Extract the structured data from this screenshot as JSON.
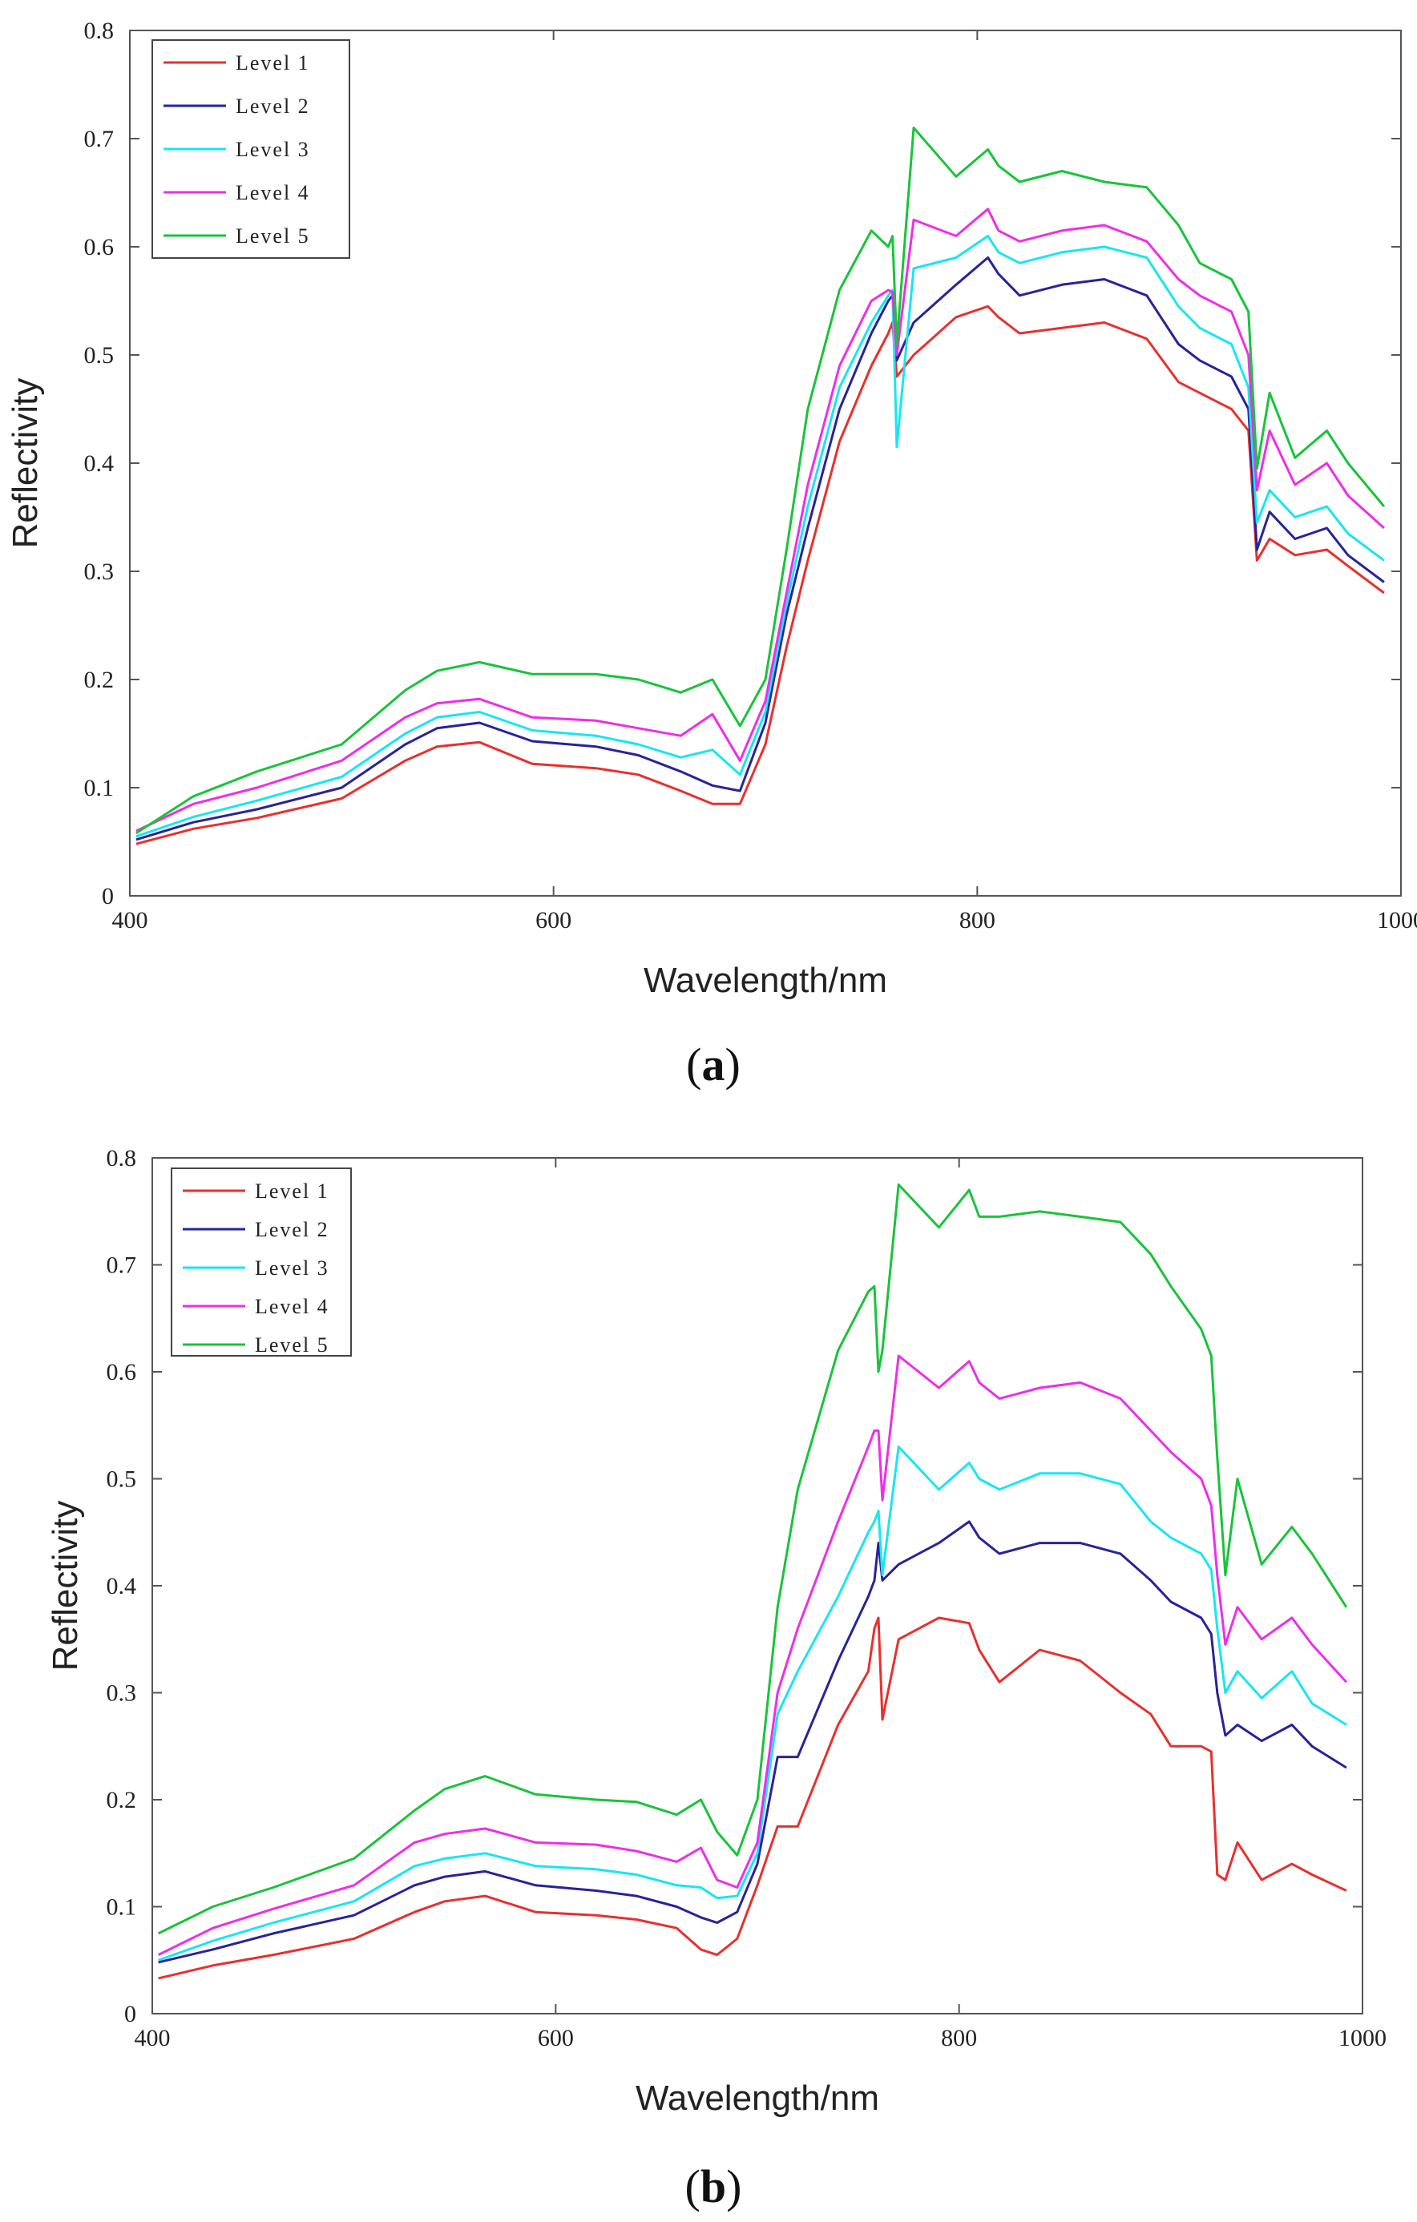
{
  "colors": {
    "Level 1": "#e8302e",
    "Level 2": "#27239b",
    "Level 3": "#18e6f0",
    "Level 4": "#ee2ee8",
    "Level 5": "#18c43a"
  },
  "chart_data": [
    {
      "id": "a",
      "caption_open": "(",
      "caption_letter": "a",
      "caption_close": ")",
      "type": "line",
      "xlabel": "Wavelength/nm",
      "ylabel": "Reflectivity",
      "xlim": [
        400,
        1000
      ],
      "ylim": [
        0,
        0.8
      ],
      "xticks": [
        "400",
        "600",
        "800",
        "1000"
      ],
      "yticks": [
        "0",
        "0.1",
        "0.2",
        "0.3",
        "0.4",
        "0.5",
        "0.6",
        "0.7",
        "0.8"
      ],
      "legend_position": "top-left",
      "series": [
        {
          "name": "Level 1",
          "x": [
            403,
            430,
            460,
            500,
            530,
            545,
            565,
            590,
            620,
            640,
            660,
            675,
            688,
            700,
            710,
            720,
            735,
            750,
            758,
            760,
            762,
            770,
            790,
            805,
            810,
            820,
            840,
            860,
            880,
            895,
            905,
            920,
            928,
            932,
            938,
            950,
            965,
            975,
            992
          ],
          "y": [
            0.048,
            0.062,
            0.072,
            0.09,
            0.125,
            0.138,
            0.142,
            0.122,
            0.118,
            0.112,
            0.097,
            0.085,
            0.085,
            0.14,
            0.23,
            0.31,
            0.42,
            0.49,
            0.52,
            0.53,
            0.48,
            0.5,
            0.535,
            0.545,
            0.535,
            0.52,
            0.525,
            0.53,
            0.515,
            0.475,
            0.465,
            0.45,
            0.43,
            0.31,
            0.33,
            0.315,
            0.32,
            0.305,
            0.28
          ]
        },
        {
          "name": "Level 2",
          "x": [
            403,
            430,
            460,
            500,
            530,
            545,
            565,
            590,
            620,
            640,
            660,
            675,
            688,
            700,
            710,
            720,
            735,
            750,
            758,
            760,
            762,
            770,
            790,
            805,
            810,
            820,
            840,
            860,
            880,
            895,
            905,
            920,
            928,
            932,
            938,
            950,
            965,
            975,
            992
          ],
          "y": [
            0.052,
            0.068,
            0.08,
            0.1,
            0.14,
            0.155,
            0.16,
            0.143,
            0.138,
            0.13,
            0.115,
            0.102,
            0.097,
            0.16,
            0.26,
            0.34,
            0.45,
            0.52,
            0.55,
            0.555,
            0.495,
            0.53,
            0.565,
            0.59,
            0.575,
            0.555,
            0.565,
            0.57,
            0.555,
            0.51,
            0.495,
            0.48,
            0.45,
            0.32,
            0.355,
            0.33,
            0.34,
            0.315,
            0.29
          ]
        },
        {
          "name": "Level 3",
          "x": [
            403,
            430,
            460,
            500,
            530,
            545,
            565,
            590,
            620,
            640,
            660,
            675,
            688,
            700,
            710,
            720,
            735,
            750,
            758,
            760,
            762,
            770,
            790,
            805,
            810,
            820,
            840,
            860,
            880,
            895,
            905,
            920,
            928,
            932,
            938,
            950,
            965,
            975,
            992
          ],
          "y": [
            0.055,
            0.073,
            0.088,
            0.11,
            0.15,
            0.165,
            0.17,
            0.153,
            0.148,
            0.14,
            0.128,
            0.135,
            0.112,
            0.17,
            0.27,
            0.36,
            0.47,
            0.53,
            0.555,
            0.56,
            0.415,
            0.58,
            0.59,
            0.61,
            0.595,
            0.585,
            0.595,
            0.6,
            0.59,
            0.545,
            0.525,
            0.51,
            0.47,
            0.345,
            0.375,
            0.35,
            0.36,
            0.335,
            0.31
          ]
        },
        {
          "name": "Level 4",
          "x": [
            403,
            430,
            460,
            500,
            530,
            545,
            565,
            590,
            620,
            640,
            660,
            675,
            688,
            700,
            710,
            720,
            735,
            750,
            758,
            760,
            762,
            770,
            790,
            805,
            810,
            820,
            840,
            860,
            880,
            895,
            905,
            920,
            928,
            932,
            938,
            950,
            965,
            975,
            992
          ],
          "y": [
            0.06,
            0.085,
            0.1,
            0.125,
            0.165,
            0.178,
            0.182,
            0.165,
            0.162,
            0.155,
            0.148,
            0.168,
            0.125,
            0.18,
            0.28,
            0.38,
            0.49,
            0.55,
            0.56,
            0.558,
            0.5,
            0.625,
            0.61,
            0.635,
            0.615,
            0.605,
            0.615,
            0.62,
            0.605,
            0.57,
            0.555,
            0.54,
            0.5,
            0.375,
            0.43,
            0.38,
            0.4,
            0.37,
            0.34
          ]
        },
        {
          "name": "Level 5",
          "x": [
            403,
            430,
            460,
            500,
            530,
            545,
            565,
            590,
            620,
            640,
            660,
            675,
            688,
            700,
            710,
            720,
            735,
            750,
            758,
            760,
            762,
            770,
            790,
            805,
            810,
            820,
            840,
            860,
            880,
            895,
            905,
            920,
            928,
            932,
            938,
            950,
            965,
            975,
            992
          ],
          "y": [
            0.058,
            0.092,
            0.115,
            0.14,
            0.19,
            0.208,
            0.216,
            0.205,
            0.205,
            0.2,
            0.188,
            0.2,
            0.157,
            0.2,
            0.32,
            0.45,
            0.56,
            0.615,
            0.6,
            0.61,
            0.51,
            0.71,
            0.665,
            0.69,
            0.675,
            0.66,
            0.67,
            0.66,
            0.655,
            0.62,
            0.585,
            0.57,
            0.54,
            0.395,
            0.465,
            0.405,
            0.43,
            0.4,
            0.36
          ]
        }
      ]
    },
    {
      "id": "b",
      "caption_open": "(",
      "caption_letter": "b",
      "caption_close": ")",
      "type": "line",
      "xlabel": "Wavelength/nm",
      "ylabel": "Reflectivity",
      "xlim": [
        400,
        1000
      ],
      "ylim": [
        0,
        0.8
      ],
      "xticks": [
        "400",
        "600",
        "800",
        "1000"
      ],
      "yticks": [
        "0",
        "0.1",
        "0.2",
        "0.3",
        "0.4",
        "0.5",
        "0.6",
        "0.7",
        "0.8"
      ],
      "legend_position": "top-left",
      "series": [
        {
          "name": "Level 1",
          "x": [
            403,
            430,
            460,
            500,
            530,
            545,
            565,
            590,
            620,
            640,
            660,
            672,
            680,
            690,
            700,
            710,
            720,
            740,
            755,
            758,
            760,
            762,
            770,
            790,
            805,
            810,
            820,
            840,
            860,
            880,
            895,
            905,
            920,
            925,
            928,
            932,
            938,
            950,
            965,
            975,
            992
          ],
          "y": [
            0.033,
            0.045,
            0.055,
            0.07,
            0.095,
            0.105,
            0.11,
            0.095,
            0.092,
            0.088,
            0.08,
            0.06,
            0.055,
            0.07,
            0.12,
            0.175,
            0.175,
            0.27,
            0.32,
            0.36,
            0.37,
            0.275,
            0.35,
            0.37,
            0.365,
            0.34,
            0.31,
            0.34,
            0.33,
            0.3,
            0.28,
            0.25,
            0.25,
            0.245,
            0.13,
            0.125,
            0.16,
            0.125,
            0.14,
            0.13,
            0.115
          ]
        },
        {
          "name": "Level 2",
          "x": [
            403,
            430,
            460,
            500,
            530,
            545,
            565,
            590,
            620,
            640,
            660,
            672,
            680,
            690,
            700,
            710,
            720,
            740,
            755,
            758,
            760,
            762,
            770,
            790,
            805,
            810,
            820,
            840,
            860,
            880,
            895,
            905,
            920,
            925,
            928,
            932,
            938,
            950,
            965,
            975,
            992
          ],
          "y": [
            0.048,
            0.06,
            0.075,
            0.092,
            0.12,
            0.128,
            0.133,
            0.12,
            0.115,
            0.11,
            0.1,
            0.09,
            0.085,
            0.095,
            0.14,
            0.24,
            0.24,
            0.33,
            0.39,
            0.405,
            0.44,
            0.405,
            0.42,
            0.44,
            0.46,
            0.445,
            0.43,
            0.44,
            0.44,
            0.43,
            0.405,
            0.385,
            0.37,
            0.355,
            0.3,
            0.26,
            0.27,
            0.255,
            0.27,
            0.25,
            0.23
          ]
        },
        {
          "name": "Level 3",
          "x": [
            403,
            430,
            460,
            500,
            530,
            545,
            565,
            590,
            620,
            640,
            660,
            672,
            680,
            690,
            700,
            710,
            720,
            740,
            755,
            758,
            760,
            762,
            770,
            790,
            805,
            810,
            820,
            840,
            860,
            880,
            895,
            905,
            920,
            925,
            928,
            932,
            938,
            950,
            965,
            975,
            992
          ],
          "y": [
            0.05,
            0.068,
            0.085,
            0.105,
            0.138,
            0.145,
            0.15,
            0.138,
            0.135,
            0.13,
            0.12,
            0.118,
            0.108,
            0.11,
            0.15,
            0.28,
            0.32,
            0.39,
            0.45,
            0.46,
            0.47,
            0.41,
            0.53,
            0.49,
            0.515,
            0.5,
            0.49,
            0.505,
            0.505,
            0.495,
            0.46,
            0.445,
            0.43,
            0.415,
            0.36,
            0.3,
            0.32,
            0.295,
            0.32,
            0.29,
            0.27
          ]
        },
        {
          "name": "Level 4",
          "x": [
            403,
            430,
            460,
            500,
            530,
            545,
            565,
            590,
            620,
            640,
            660,
            672,
            680,
            690,
            700,
            710,
            720,
            740,
            755,
            758,
            760,
            762,
            770,
            790,
            805,
            810,
            820,
            840,
            860,
            880,
            895,
            905,
            920,
            925,
            928,
            932,
            938,
            950,
            965,
            975,
            992
          ],
          "y": [
            0.055,
            0.08,
            0.098,
            0.12,
            0.16,
            0.168,
            0.173,
            0.16,
            0.158,
            0.152,
            0.142,
            0.155,
            0.125,
            0.118,
            0.16,
            0.3,
            0.36,
            0.46,
            0.53,
            0.545,
            0.545,
            0.48,
            0.615,
            0.585,
            0.61,
            0.59,
            0.575,
            0.585,
            0.59,
            0.575,
            0.545,
            0.525,
            0.5,
            0.475,
            0.41,
            0.345,
            0.38,
            0.35,
            0.37,
            0.345,
            0.31
          ]
        },
        {
          "name": "Level 5",
          "x": [
            403,
            430,
            460,
            500,
            530,
            545,
            565,
            590,
            620,
            640,
            660,
            672,
            680,
            690,
            700,
            710,
            720,
            740,
            755,
            758,
            760,
            762,
            770,
            790,
            805,
            810,
            820,
            840,
            860,
            880,
            895,
            905,
            920,
            925,
            928,
            932,
            938,
            950,
            965,
            975,
            992
          ],
          "y": [
            0.075,
            0.1,
            0.118,
            0.145,
            0.19,
            0.21,
            0.222,
            0.205,
            0.2,
            0.198,
            0.186,
            0.2,
            0.17,
            0.148,
            0.2,
            0.38,
            0.49,
            0.62,
            0.675,
            0.68,
            0.6,
            0.62,
            0.775,
            0.735,
            0.77,
            0.745,
            0.745,
            0.75,
            0.745,
            0.74,
            0.71,
            0.68,
            0.64,
            0.615,
            0.52,
            0.41,
            0.5,
            0.42,
            0.455,
            0.43,
            0.38
          ]
        }
      ]
    }
  ]
}
